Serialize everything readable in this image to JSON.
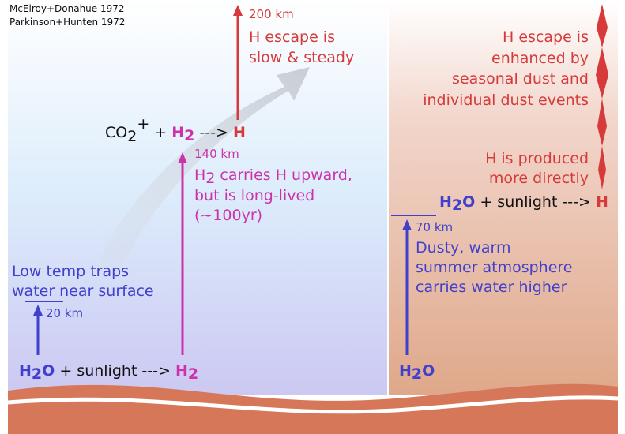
{
  "left": {
    "refs": [
      "McElroy+Donahue 1972",
      "Parkinson+Hunten 1972"
    ],
    "escape_alt": "200 km",
    "escape_text": [
      "H escape is",
      "slow & steady"
    ],
    "reaction_top": [
      "CO",
      "2",
      "+",
      " + ",
      "H",
      "2",
      " ---> ",
      "H"
    ],
    "h2_alt": "140 km",
    "h2_text": [
      "H",
      "2",
      " carries H upward,",
      "but is long-lived",
      "(~100yr)"
    ],
    "water_text": [
      "Low temp traps",
      "water near surface"
    ],
    "water_alt": "20 km",
    "reaction_bottom": [
      "H",
      "2",
      "O",
      " + sunlight ---> ",
      "H",
      "2"
    ]
  },
  "right": {
    "escape_text": [
      "H escape is",
      "enhanced by",
      "seasonal dust and",
      "individual dust events"
    ],
    "produced_text": [
      "H is produced",
      "more directly"
    ],
    "reaction": [
      "H",
      "2",
      "O",
      " + sunlight ---> ",
      "H"
    ],
    "water_alt": "70 km",
    "water_text": [
      "Dusty, warm",
      "summer atmosphere",
      "carries water higher"
    ],
    "bottom": [
      "H",
      "2",
      "O"
    ]
  }
}
